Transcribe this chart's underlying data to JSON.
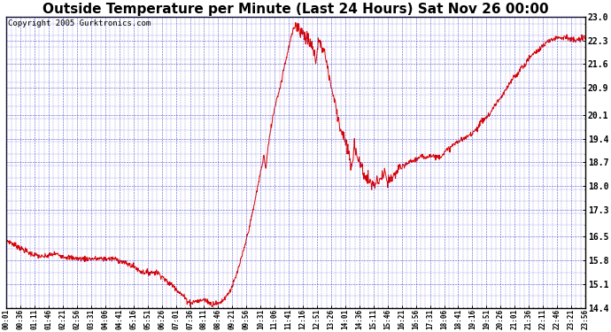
{
  "title": "Outside Temperature per Minute (Last 24 Hours) Sat Nov 26 00:00",
  "copyright": "Copyright 2005 Gurktronics.com",
  "yticks": [
    14.4,
    15.1,
    15.8,
    16.5,
    17.3,
    18.0,
    18.7,
    19.4,
    20.1,
    20.9,
    21.6,
    22.3,
    23.0
  ],
  "ymin": 14.4,
  "ymax": 23.0,
  "xtick_labels": [
    "00:01",
    "00:36",
    "01:11",
    "01:46",
    "02:21",
    "02:56",
    "03:31",
    "04:06",
    "04:41",
    "05:16",
    "05:51",
    "06:26",
    "07:01",
    "07:36",
    "08:11",
    "08:46",
    "09:21",
    "09:56",
    "10:31",
    "11:06",
    "11:41",
    "12:16",
    "12:51",
    "13:26",
    "14:01",
    "14:36",
    "15:11",
    "15:46",
    "16:21",
    "16:56",
    "17:31",
    "18:06",
    "18:41",
    "19:16",
    "19:51",
    "20:26",
    "21:01",
    "21:36",
    "22:11",
    "22:46",
    "23:21",
    "23:56"
  ],
  "line_color": "#dd0000",
  "grid_color": "#3333cc",
  "background_color": "#ffffff",
  "title_fontsize": 11,
  "copyright_fontsize": 6.5,
  "key_points": [
    [
      0,
      16.4
    ],
    [
      30,
      16.2
    ],
    [
      60,
      16.0
    ],
    [
      90,
      15.9
    ],
    [
      120,
      16.0
    ],
    [
      150,
      15.9
    ],
    [
      180,
      15.85
    ],
    [
      210,
      15.85
    ],
    [
      240,
      15.85
    ],
    [
      270,
      15.85
    ],
    [
      300,
      15.7
    ],
    [
      320,
      15.6
    ],
    [
      330,
      15.5
    ],
    [
      340,
      15.45
    ],
    [
      360,
      15.45
    ],
    [
      375,
      15.45
    ],
    [
      390,
      15.3
    ],
    [
      400,
      15.15
    ],
    [
      410,
      15.1
    ],
    [
      420,
      15.0
    ],
    [
      430,
      14.85
    ],
    [
      440,
      14.75
    ],
    [
      450,
      14.6
    ],
    [
      460,
      14.55
    ],
    [
      470,
      14.6
    ],
    [
      480,
      14.6
    ],
    [
      490,
      14.65
    ],
    [
      500,
      14.6
    ],
    [
      510,
      14.5
    ],
    [
      520,
      14.55
    ],
    [
      525,
      14.5
    ],
    [
      530,
      14.55
    ],
    [
      540,
      14.65
    ],
    [
      550,
      14.8
    ],
    [
      560,
      15.0
    ],
    [
      570,
      15.3
    ],
    [
      580,
      15.7
    ],
    [
      590,
      16.1
    ],
    [
      600,
      16.6
    ],
    [
      610,
      17.1
    ],
    [
      620,
      17.7
    ],
    [
      630,
      18.3
    ],
    [
      640,
      18.9
    ],
    [
      645,
      18.5
    ],
    [
      650,
      19.1
    ],
    [
      660,
      19.9
    ],
    [
      670,
      20.5
    ],
    [
      680,
      20.9
    ],
    [
      690,
      21.5
    ],
    [
      700,
      22.0
    ],
    [
      710,
      22.5
    ],
    [
      720,
      22.8
    ],
    [
      730,
      22.6
    ],
    [
      740,
      22.5
    ],
    [
      750,
      22.3
    ],
    [
      760,
      22.1
    ],
    [
      770,
      21.7
    ],
    [
      775,
      22.3
    ],
    [
      780,
      22.2
    ],
    [
      790,
      22.0
    ],
    [
      800,
      21.4
    ],
    [
      810,
      20.8
    ],
    [
      820,
      20.3
    ],
    [
      830,
      19.7
    ],
    [
      840,
      19.4
    ],
    [
      850,
      19.0
    ],
    [
      855,
      18.7
    ],
    [
      860,
      18.5
    ],
    [
      865,
      19.3
    ],
    [
      870,
      19.0
    ],
    [
      875,
      18.8
    ],
    [
      880,
      18.6
    ],
    [
      885,
      18.5
    ],
    [
      890,
      18.3
    ],
    [
      895,
      18.2
    ],
    [
      900,
      18.2
    ],
    [
      910,
      18.0
    ],
    [
      920,
      18.1
    ],
    [
      930,
      18.2
    ],
    [
      940,
      18.4
    ],
    [
      945,
      18.1
    ],
    [
      950,
      18.15
    ],
    [
      960,
      18.2
    ],
    [
      970,
      18.4
    ],
    [
      975,
      18.6
    ],
    [
      980,
      18.5
    ],
    [
      990,
      18.6
    ],
    [
      1000,
      18.7
    ],
    [
      1010,
      18.75
    ],
    [
      1020,
      18.8
    ],
    [
      1030,
      18.85
    ],
    [
      1040,
      18.85
    ],
    [
      1050,
      18.9
    ],
    [
      1060,
      18.9
    ],
    [
      1070,
      18.85
    ],
    [
      1080,
      18.9
    ],
    [
      1090,
      19.0
    ],
    [
      1100,
      19.1
    ],
    [
      1110,
      19.2
    ],
    [
      1120,
      19.3
    ],
    [
      1130,
      19.35
    ],
    [
      1140,
      19.4
    ],
    [
      1150,
      19.5
    ],
    [
      1160,
      19.6
    ],
    [
      1170,
      19.7
    ],
    [
      1180,
      19.9
    ],
    [
      1190,
      20.0
    ],
    [
      1200,
      20.1
    ],
    [
      1210,
      20.3
    ],
    [
      1220,
      20.5
    ],
    [
      1230,
      20.6
    ],
    [
      1240,
      20.8
    ],
    [
      1250,
      21.0
    ],
    [
      1260,
      21.2
    ],
    [
      1270,
      21.3
    ],
    [
      1280,
      21.5
    ],
    [
      1290,
      21.6
    ],
    [
      1300,
      21.8
    ],
    [
      1310,
      21.9
    ],
    [
      1320,
      22.0
    ],
    [
      1330,
      22.1
    ],
    [
      1340,
      22.2
    ],
    [
      1350,
      22.3
    ],
    [
      1360,
      22.35
    ],
    [
      1370,
      22.4
    ],
    [
      1380,
      22.4
    ],
    [
      1390,
      22.4
    ],
    [
      1400,
      22.35
    ],
    [
      1410,
      22.3
    ],
    [
      1420,
      22.3
    ],
    [
      1430,
      22.35
    ],
    [
      1439,
      22.4
    ]
  ]
}
